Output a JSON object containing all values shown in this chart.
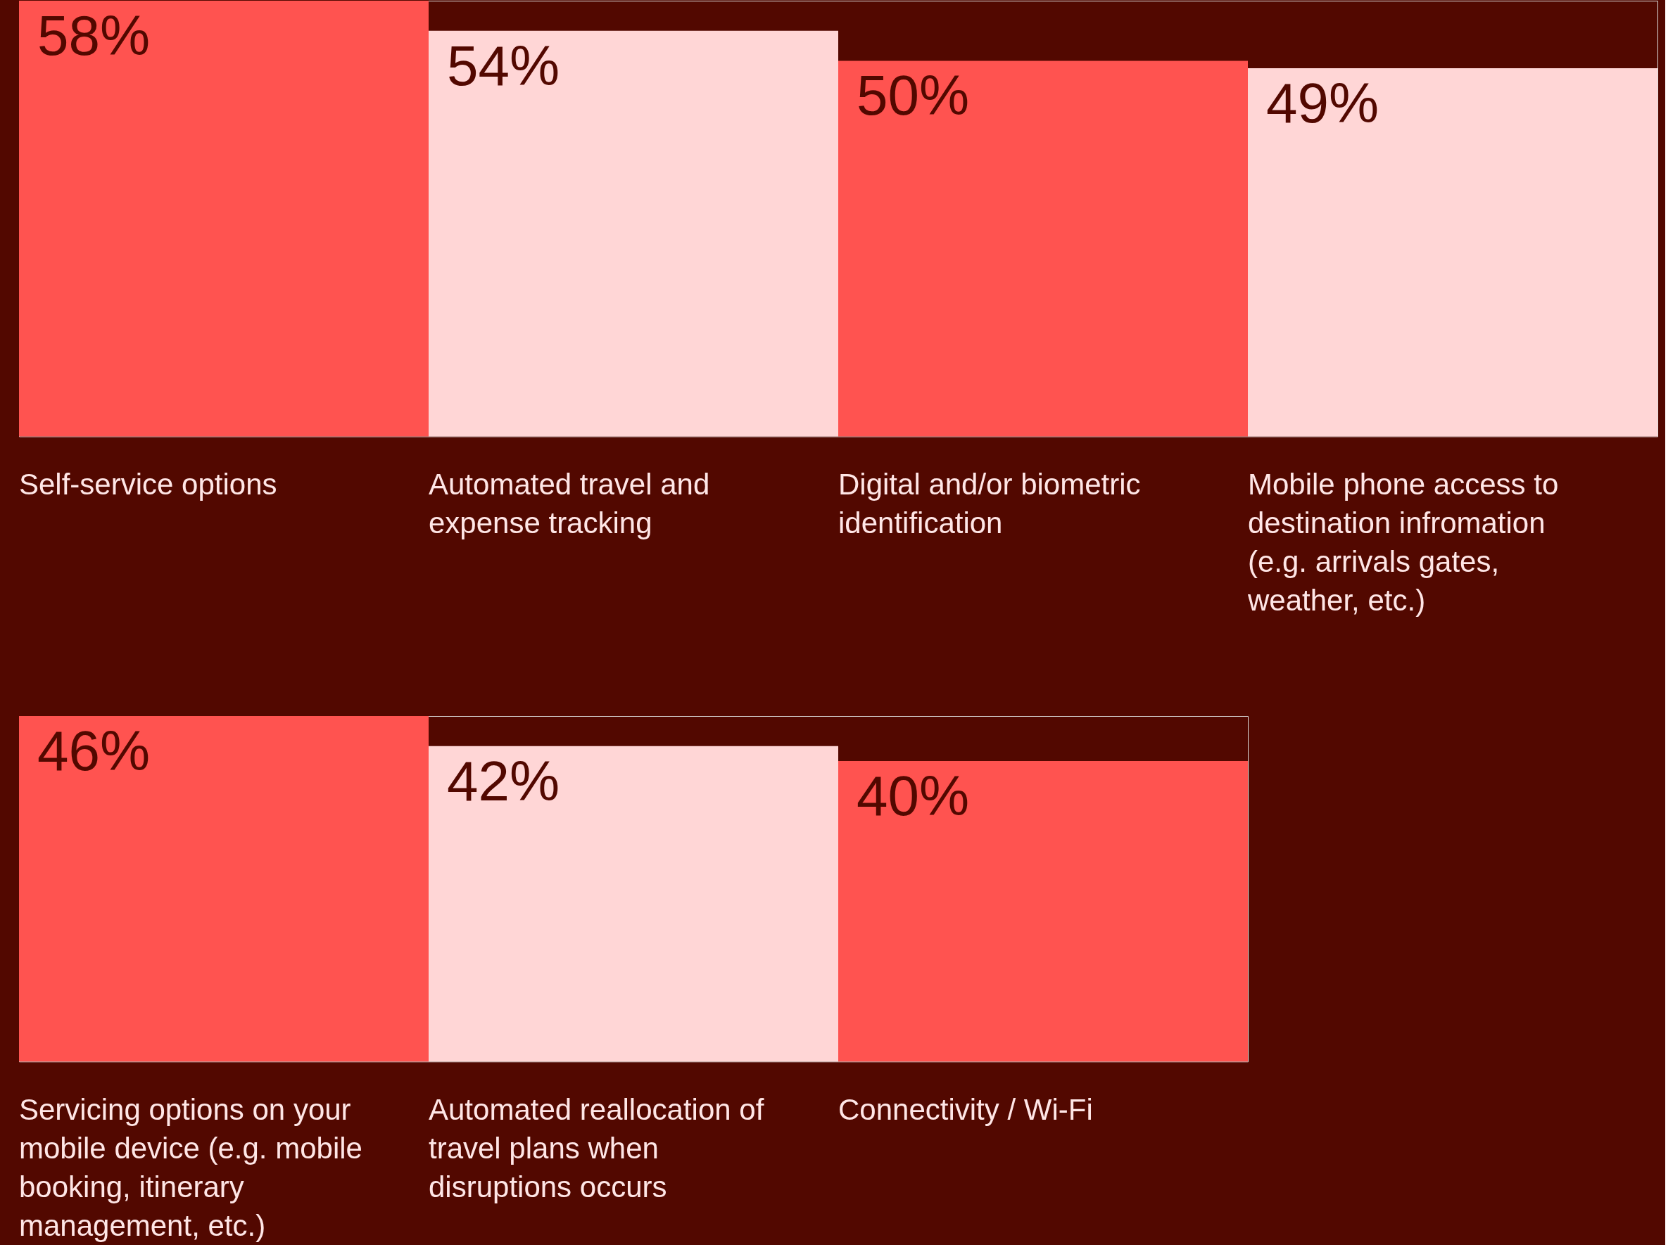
{
  "chart_data": [
    {
      "type": "bar",
      "categories": [
        "Self-service options",
        "Automated travel and expense tracking",
        "Digital and/or biometric identification",
        "Mobile phone access to destination infromation (e.g. arrivals gates, weather, etc.)"
      ],
      "values": [
        58,
        54,
        50,
        49
      ],
      "value_labels": [
        "58%",
        "54%",
        "50%",
        "49%"
      ],
      "colors": [
        "#ff5350",
        "#ffd6d6",
        "#ff5350",
        "#ffd6d6"
      ]
    },
    {
      "type": "bar",
      "categories": [
        "Servicing options on your mobile device (e.g. mobile booking, itinerary management, etc.)",
        "Automated reallocation of travel plans when disruptions occurs",
        "Connectivity / Wi-Fi"
      ],
      "values": [
        46,
        42,
        40
      ],
      "value_labels": [
        "46%",
        "42%",
        "40%"
      ],
      "colors": [
        "#ff5350",
        "#ffd6d6",
        "#ff5350"
      ]
    }
  ]
}
